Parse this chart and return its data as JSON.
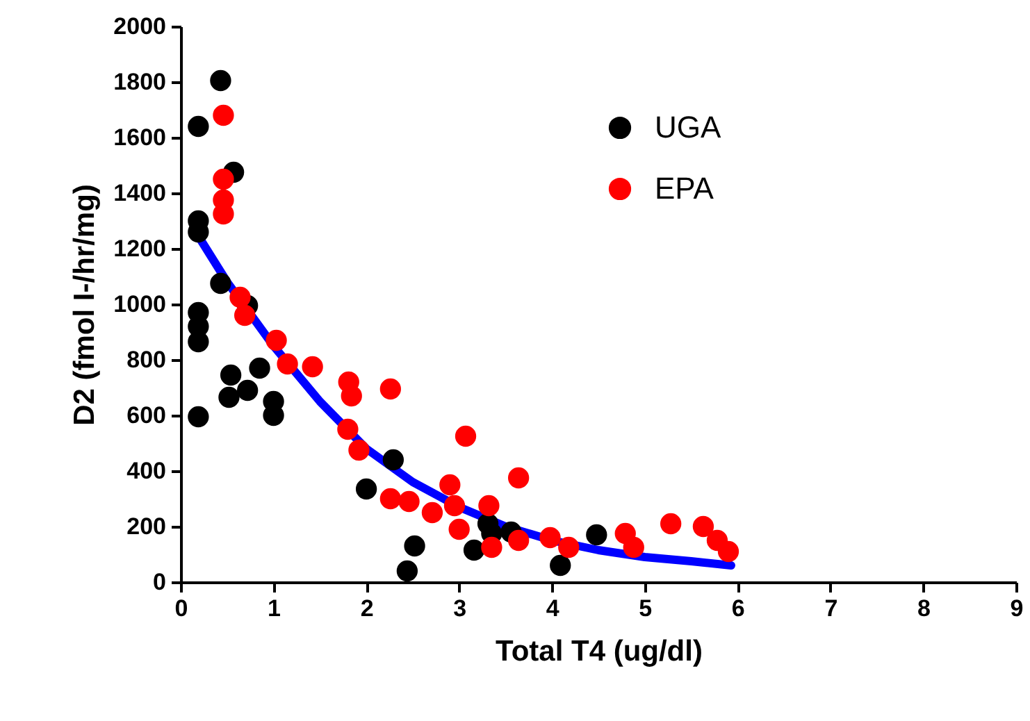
{
  "chart_data": {
    "type": "scatter",
    "xlabel": "Total T4 (ug/dl)",
    "ylabel": "D2 (fmol I-/hr/mg)",
    "xlim": [
      0,
      9
    ],
    "xticks": [
      0,
      1,
      2,
      3,
      4,
      5,
      6,
      7,
      8,
      9
    ],
    "ylim": [
      0,
      2000
    ],
    "yticks": [
      0,
      200,
      400,
      600,
      800,
      1000,
      1200,
      1400,
      1600,
      1800,
      2000
    ],
    "grid": false,
    "legend": "top right",
    "marker": "circle",
    "series": [
      {
        "name": "UGA",
        "color": "#000000",
        "type": "scatter",
        "x": [
          0.19,
          0.43,
          0.19,
          0.19,
          0.57,
          0.43,
          0.19,
          0.19,
          0.19,
          0.19,
          0.54,
          0.52,
          0.72,
          0.85,
          0.72,
          1.0,
          1.0,
          2.0,
          2.29,
          2.44,
          2.52,
          3.16,
          3.31,
          3.35,
          3.56,
          4.09,
          4.48
        ],
        "values": [
          1640,
          1805,
          1300,
          1260,
          1475,
          1075,
          970,
          920,
          865,
          595,
          745,
          665,
          690,
          770,
          995,
          650,
          600,
          335,
          440,
          40,
          130,
          115,
          210,
          175,
          180,
          60,
          170
        ]
      },
      {
        "name": "EPA",
        "color": "#ff0000",
        "type": "scatter",
        "x": [
          0.46,
          0.46,
          0.46,
          0.46,
          0.64,
          0.69,
          1.03,
          1.15,
          1.42,
          1.81,
          1.84,
          1.8,
          1.92,
          2.26,
          2.26,
          2.46,
          2.71,
          2.9,
          2.95,
          3.0,
          3.07,
          3.32,
          3.35,
          3.64,
          3.64,
          3.98,
          4.18,
          4.79,
          4.88,
          5.28,
          5.63,
          5.78,
          5.9
        ],
        "values": [
          1680,
          1450,
          1375,
          1325,
          1025,
          960,
          870,
          785,
          775,
          720,
          670,
          550,
          475,
          695,
          300,
          290,
          250,
          350,
          275,
          190,
          525,
          275,
          125,
          375,
          150,
          160,
          125,
          175,
          125,
          210,
          200,
          150,
          110
        ]
      },
      {
        "color": "#0000ff",
        "type": "line",
        "marker": "none",
        "x": [
          0.2,
          0.5,
          1,
          1.5,
          2,
          2.5,
          3,
          3.5,
          4,
          4.5,
          5,
          5.5,
          5.93
        ],
        "values": [
          1240,
          1080,
          850,
          650,
          480,
          360,
          270,
          200,
          150,
          115,
          90,
          75,
          60
        ]
      }
    ]
  }
}
